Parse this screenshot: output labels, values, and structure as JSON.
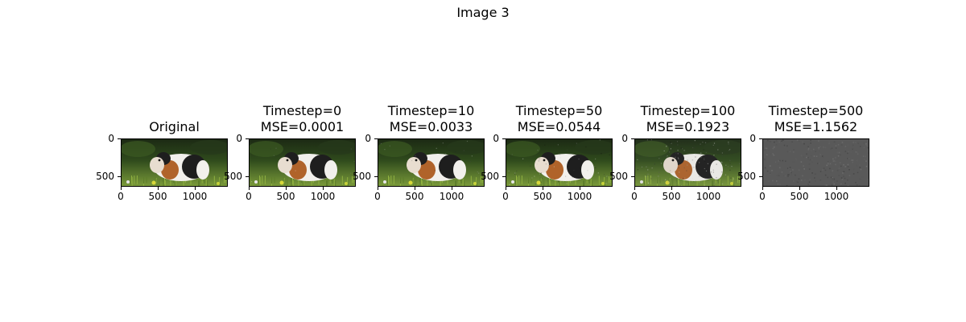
{
  "figure": {
    "suptitle": "Image 3",
    "panels": [
      {
        "title_lines": [
          "Original"
        ],
        "noise": 0.0,
        "gray": false
      },
      {
        "title_lines": [
          "Timestep=0",
          "MSE=0.0001"
        ],
        "noise": 0.02,
        "gray": false
      },
      {
        "title_lines": [
          "Timestep=10",
          "MSE=0.0033"
        ],
        "noise": 0.06,
        "gray": false
      },
      {
        "title_lines": [
          "Timestep=50",
          "MSE=0.0544"
        ],
        "noise": 0.15,
        "gray": false
      },
      {
        "title_lines": [
          "Timestep=100",
          "MSE=0.1923"
        ],
        "noise": 0.3,
        "gray": false
      },
      {
        "title_lines": [
          "Timestep=500",
          "MSE=1.1562"
        ],
        "noise": 1.0,
        "gray": true
      }
    ],
    "x_ticks": [
      {
        "label": "0",
        "value": 0
      },
      {
        "label": "500",
        "value": 500
      },
      {
        "label": "1000",
        "value": 1000
      }
    ],
    "y_ticks": [
      {
        "label": "0",
        "value": 0
      },
      {
        "label": "500",
        "value": 500
      }
    ],
    "x_extent": 1440,
    "y_extent": 640
  },
  "colors": {
    "grass_dark": "#2f4a1c",
    "grass_light": "#7a9a3a",
    "background_dark": "#1c2a14",
    "fur_white": "#f2f0ec",
    "fur_orange": "#b0632a",
    "fur_black": "#1e1e1e",
    "noise_gray": "#595959"
  }
}
